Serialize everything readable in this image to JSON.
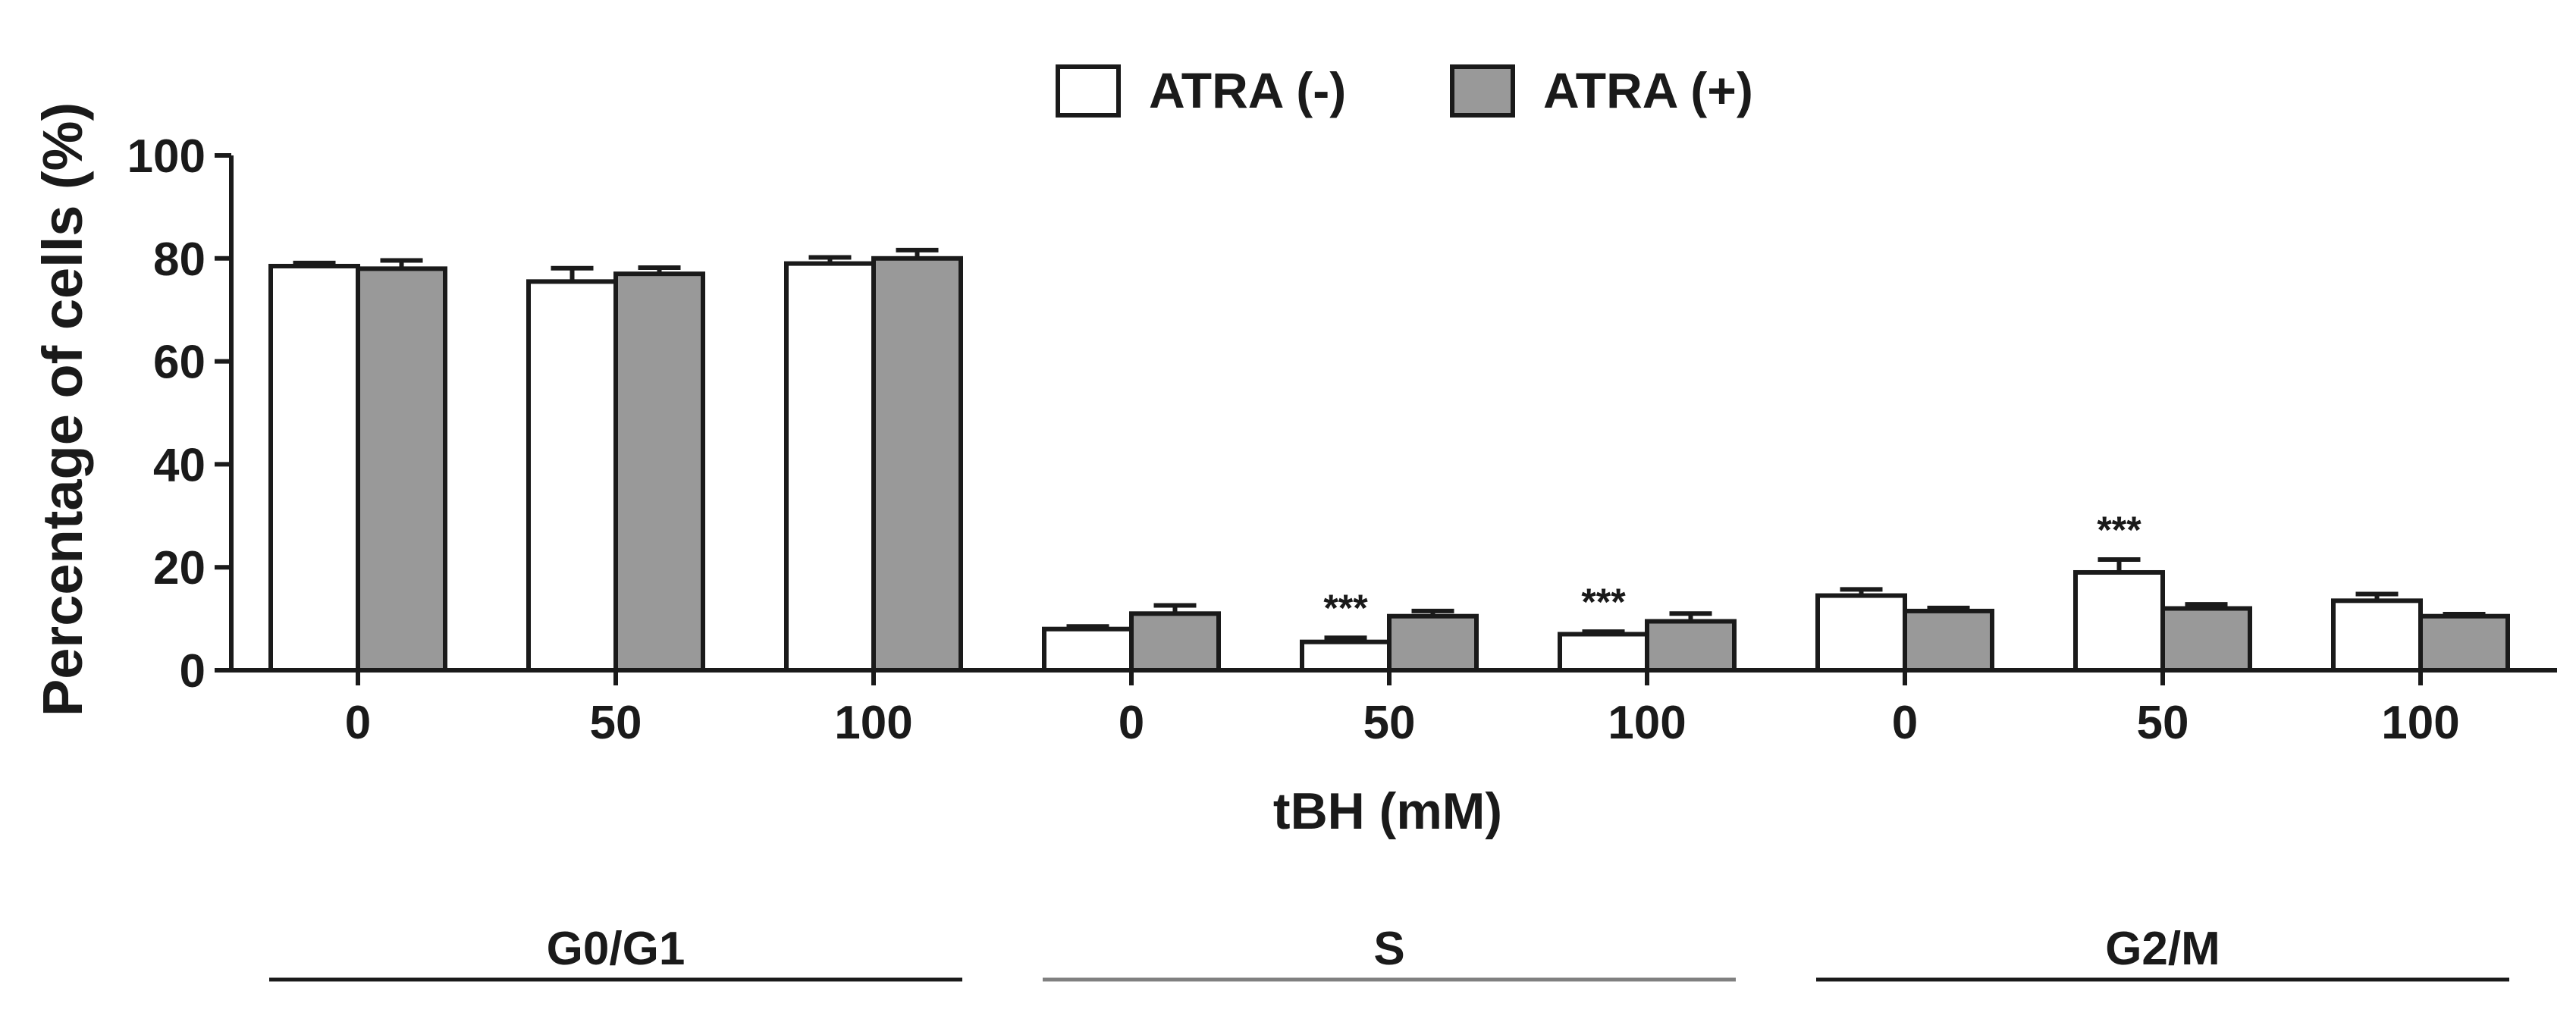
{
  "chart_data": {
    "type": "bar",
    "ylabel": "Percentage of cells (%)",
    "xlabel": "tBH (mM)",
    "ylim": [
      0,
      100
    ],
    "yticks": [
      "0",
      "20",
      "40",
      "60",
      "80",
      "100"
    ],
    "categories": [
      "0",
      "50",
      "100",
      "0",
      "50",
      "100",
      "0",
      "50",
      "100"
    ],
    "groups": [
      {
        "label": "G0/G1",
        "categories": [
          "0",
          "50",
          "100"
        ]
      },
      {
        "label": "S",
        "categories": [
          "0",
          "50",
          "100"
        ]
      },
      {
        "label": "G2/M",
        "categories": [
          "0",
          "50",
          "100"
        ]
      }
    ],
    "series": [
      {
        "name": "ATRA (-)",
        "color": "#ffffff",
        "values": [
          78.5,
          75.5,
          79.0,
          8.0,
          5.5,
          7.0,
          14.5,
          19.0,
          13.5
        ],
        "errors": [
          0.6,
          2.6,
          1.2,
          0.5,
          0.8,
          0.5,
          1.2,
          2.5,
          1.3
        ]
      },
      {
        "name": "ATRA (+)",
        "color": "#999999",
        "values": [
          78.0,
          77.0,
          80.0,
          11.0,
          10.5,
          9.5,
          11.5,
          12.0,
          10.5
        ],
        "errors": [
          1.6,
          1.2,
          1.6,
          1.6,
          1.0,
          1.5,
          0.6,
          0.8,
          0.4
        ]
      }
    ],
    "annotations": [
      {
        "category_index": 4,
        "series": "ATRA (-)",
        "text": "***"
      },
      {
        "category_index": 5,
        "series": "ATRA (-)",
        "text": "***"
      },
      {
        "category_index": 7,
        "series": "ATRA (-)",
        "text": "***"
      }
    ],
    "legend": "top-center",
    "grid": false
  }
}
